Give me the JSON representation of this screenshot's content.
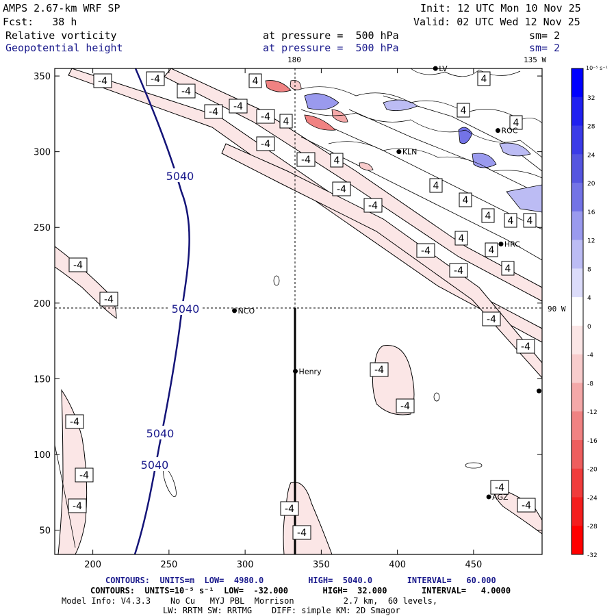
{
  "header": {
    "title": "AMPS 2.67-km WRF SP",
    "forecast": "Fcst:   38 h",
    "init": "Init: 12 UTC Mon 10 Nov 25",
    "valid": "Valid: 02 UTC Wed 12 Nov 25",
    "field1": "Relative vorticity",
    "field2": "Geopotential height",
    "level1": "at pressure =  500 hPa",
    "level2": "at pressure =  500 hPa",
    "sm1": "sm= 2",
    "sm2": "sm= 2",
    "lon_label_top1": "180",
    "lon_label_top2": "135 W",
    "lon_label_right": "90 W"
  },
  "axes": {
    "x_ticks": [
      "200",
      "250",
      "300",
      "350",
      "400",
      "450"
    ],
    "y_ticks": [
      "50",
      "100",
      "150",
      "200",
      "250",
      "300",
      "350"
    ]
  },
  "stations": [
    {
      "name": "NCO",
      "x": 293,
      "y": 195
    },
    {
      "name": "Henry",
      "x": 333,
      "y": 155
    },
    {
      "name": "KLN",
      "x": 401,
      "y": 300
    },
    {
      "name": "ROC",
      "x": 466,
      "y": 314
    },
    {
      "name": "HRC",
      "x": 468,
      "y": 239
    },
    {
      "name": "AGZ",
      "x": 460,
      "y": 72
    },
    {
      "name": "LV",
      "x": 425,
      "y": 355
    },
    {
      "name": "",
      "x": 493,
      "y": 142
    }
  ],
  "height_labels": [
    "5040",
    "5040",
    "5040",
    "5040"
  ],
  "vort_labels": [
    "-4",
    "4"
  ],
  "colorbar": {
    "units": "10⁻⁵ s⁻¹",
    "ticks": [
      "32",
      "28",
      "24",
      "20",
      "16",
      "12",
      "8",
      "4",
      "0",
      "-4",
      "-8",
      "-12",
      "-16",
      "-20",
      "-24",
      "-28",
      "-32"
    ],
    "colors": [
      "#0000ff",
      "#2020f0",
      "#3b3be8",
      "#5555e0",
      "#7373e6",
      "#9a9aee",
      "#bcbcf4",
      "#dcdcfa",
      "#ffffff",
      "#fbe6e6",
      "#f8cccc",
      "#f4a8a8",
      "#f08282",
      "#ee5e5e",
      "#f03c3c",
      "#f41e1e",
      "#ff0000"
    ]
  },
  "footer": {
    "line1": "CONTOURS:  UNITS=m  LOW=  4980.0         HIGH=  5040.0       INTERVAL=   60.000",
    "line2": "CONTOURS:  UNITS=10⁻⁵ s⁻¹  LOW=  -32.000       HIGH=  32.000       INTERVAL=   4.0000",
    "line3": "Model Info: V4.3.3    No Cu   MYJ PBL  Morrison          2.7 km,  60 levels,",
    "line4": "LW: RRTM SW: RRTMG    DIFF: simple KM: 2D Smagor"
  }
}
